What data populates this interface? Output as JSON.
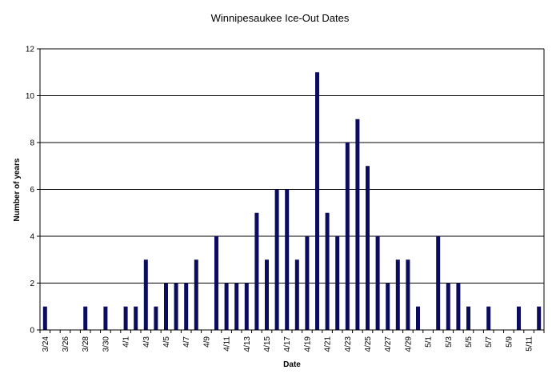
{
  "chart_data": {
    "type": "bar",
    "title": "Winnipesaukee Ice-Out Dates",
    "xlabel": "Date",
    "ylabel": "Number of years",
    "ylim": [
      0,
      12
    ],
    "yticks": [
      0,
      2,
      4,
      6,
      8,
      10,
      12
    ],
    "grid": true,
    "bar_color": "#0c0c5e",
    "categories": [
      "3/24",
      "3/25",
      "3/26",
      "3/27",
      "3/28",
      "3/29",
      "3/30",
      "3/31",
      "4/1",
      "4/2",
      "4/3",
      "4/4",
      "4/5",
      "4/6",
      "4/7",
      "4/8",
      "4/9",
      "4/10",
      "4/11",
      "4/12",
      "4/13",
      "4/14",
      "4/15",
      "4/16",
      "4/17",
      "4/18",
      "4/19",
      "4/20",
      "4/21",
      "4/22",
      "4/23",
      "4/24",
      "4/25",
      "4/26",
      "4/27",
      "4/28",
      "4/29",
      "4/30",
      "5/1",
      "5/2",
      "5/3",
      "5/4",
      "5/5",
      "5/6",
      "5/7",
      "5/8",
      "5/9",
      "5/10",
      "5/11",
      "5/12"
    ],
    "tick_labels": [
      "3/24",
      "3/26",
      "3/28",
      "3/30",
      "4/1",
      "4/3",
      "4/5",
      "4/7",
      "4/9",
      "4/11",
      "4/13",
      "4/15",
      "4/17",
      "4/19",
      "4/21",
      "4/23",
      "4/25",
      "4/27",
      "4/29",
      "5/1",
      "5/3",
      "5/5",
      "5/7",
      "5/9",
      "5/11"
    ],
    "values": [
      1,
      0,
      0,
      0,
      1,
      0,
      1,
      0,
      1,
      1,
      3,
      1,
      2,
      2,
      2,
      3,
      0,
      4,
      2,
      2,
      2,
      5,
      3,
      6,
      6,
      3,
      4,
      11,
      5,
      4,
      8,
      9,
      7,
      4,
      2,
      3,
      3,
      1,
      0,
      4,
      2,
      2,
      1,
      0,
      1,
      0,
      0,
      1,
      0,
      1
    ]
  }
}
